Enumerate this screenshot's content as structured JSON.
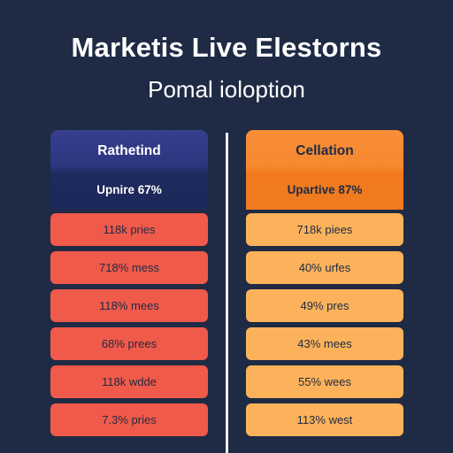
{
  "header": {
    "title": "Marketis Live Elestorns",
    "subtitle": "Pomal ioloption"
  },
  "columns": [
    {
      "label": "Rathetind",
      "headline": "Upnire 67%",
      "rows": [
        "118k pries",
        "718% mess",
        "118% mees",
        "68% prees",
        "118k wdde",
        "7.3% pries"
      ]
    },
    {
      "label": "Cellation",
      "headline": "Upartive 87%",
      "rows": [
        "718k piees",
        "40% urfes",
        "49% pres",
        "43% mees",
        "55% wees",
        "113% west"
      ]
    }
  ],
  "colors": {
    "background": "#1f2a44",
    "left_header": "#2d3580",
    "left_rows": "#f05a4a",
    "right_header": "#f5892f",
    "right_rows": "#fbb25a"
  }
}
